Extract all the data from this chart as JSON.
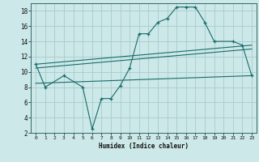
{
  "title": "",
  "xlabel": "Humidex (Indice chaleur)",
  "bg_color": "#cce8e8",
  "grid_color": "#a8cccc",
  "line_color": "#1a6b6b",
  "xlim": [
    -0.5,
    23.5
  ],
  "ylim": [
    2,
    19
  ],
  "yticks": [
    2,
    4,
    6,
    8,
    10,
    12,
    14,
    16,
    18
  ],
  "xticks": [
    0,
    1,
    2,
    3,
    4,
    5,
    6,
    7,
    8,
    9,
    10,
    11,
    12,
    13,
    14,
    15,
    16,
    17,
    18,
    19,
    20,
    21,
    22,
    23
  ],
  "line1_x": [
    0,
    1,
    3,
    5,
    6,
    7,
    8,
    9,
    10,
    11,
    12,
    13,
    14,
    15,
    16,
    17,
    18,
    19,
    21,
    22,
    23
  ],
  "line1_y": [
    11,
    8,
    9.5,
    8,
    2.5,
    6.5,
    6.5,
    8.2,
    10.5,
    15,
    15,
    16.5,
    17,
    18.5,
    18.5,
    18.5,
    16.5,
    14,
    14,
    13.5,
    9.5
  ],
  "line2_x": [
    0,
    23
  ],
  "line2_y": [
    11,
    13.5
  ],
  "line3_x": [
    0,
    23
  ],
  "line3_y": [
    10.5,
    13.0
  ],
  "line4_x": [
    0,
    23
  ],
  "line4_y": [
    8.5,
    9.5
  ]
}
